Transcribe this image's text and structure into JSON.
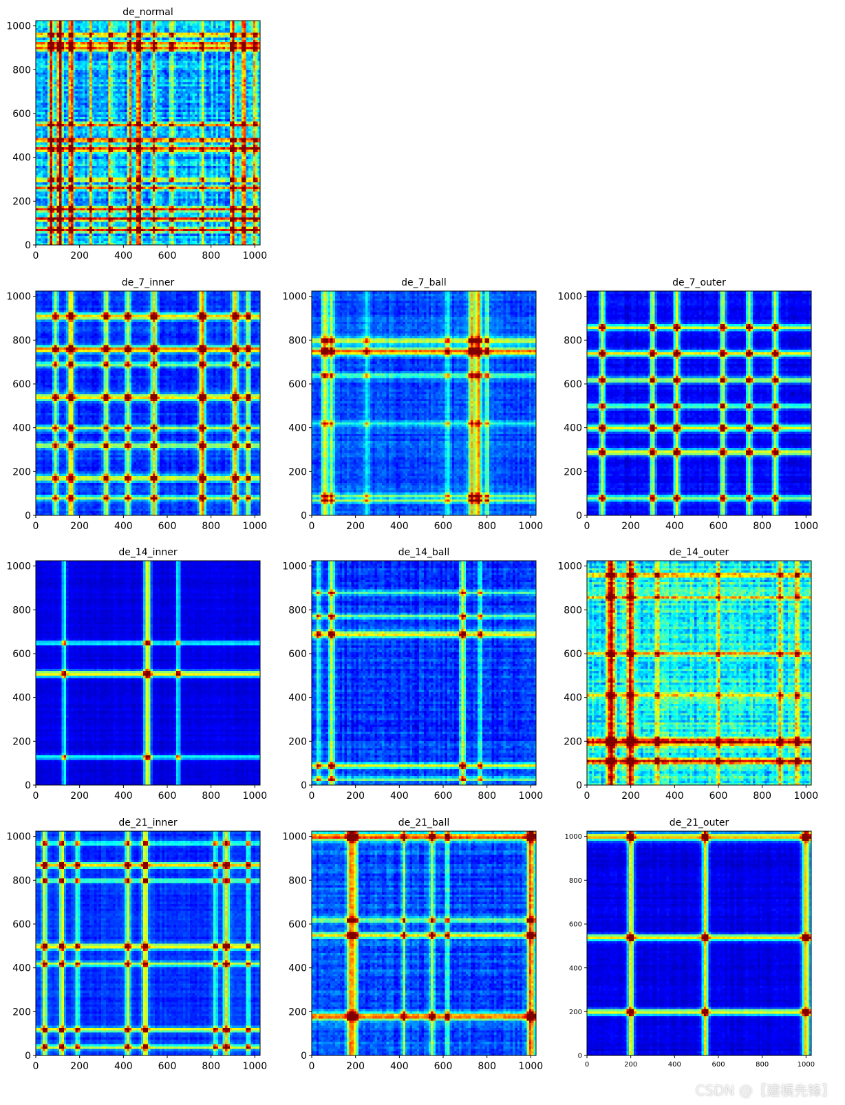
{
  "figure": {
    "colormap": "jet",
    "grid": "4x3",
    "watermark": "CSDN @【建模先锋】"
  },
  "chart_data": [
    {
      "type": "heatmap",
      "title": "de_normal",
      "row": 0,
      "col": 0,
      "xlim": [
        0,
        1024
      ],
      "ylim": [
        0,
        1024
      ],
      "x_ticks": [
        0,
        200,
        400,
        600,
        800,
        1000
      ],
      "y_ticks": [
        0,
        200,
        400,
        600,
        800,
        1000
      ],
      "base": 0.3,
      "noise": 0.16,
      "bands_x": [
        [
          70,
          0.6,
          7
        ],
        [
          110,
          0.7,
          7
        ],
        [
          160,
          0.6,
          7
        ],
        [
          250,
          0.45,
          6
        ],
        [
          340,
          0.4,
          6
        ],
        [
          430,
          0.45,
          6
        ],
        [
          470,
          0.6,
          7
        ],
        [
          540,
          0.45,
          6
        ],
        [
          620,
          0.35,
          6
        ],
        [
          760,
          0.35,
          6
        ],
        [
          900,
          0.6,
          7
        ],
        [
          950,
          0.55,
          7
        ],
        [
          1000,
          0.4,
          6
        ]
      ],
      "bands_y": [
        [
          70,
          0.55,
          7
        ],
        [
          120,
          0.55,
          7
        ],
        [
          165,
          0.6,
          7
        ],
        [
          260,
          0.45,
          6
        ],
        [
          300,
          0.4,
          6
        ],
        [
          440,
          0.6,
          7
        ],
        [
          480,
          0.5,
          7
        ],
        [
          550,
          0.45,
          6
        ],
        [
          900,
          0.5,
          7
        ],
        [
          920,
          0.55,
          7
        ],
        [
          960,
          0.45,
          6
        ]
      ]
    },
    {
      "type": "heatmap",
      "title": "de_7_inner",
      "row": 1,
      "col": 0,
      "xlim": [
        0,
        1024
      ],
      "ylim": [
        0,
        1024
      ],
      "x_ticks": [
        0,
        200,
        400,
        600,
        800,
        1000
      ],
      "y_ticks": [
        0,
        200,
        400,
        600,
        800,
        1000
      ],
      "base": 0.17,
      "noise": 0.07,
      "bands_x": [
        [
          90,
          0.35,
          8
        ],
        [
          160,
          0.5,
          10
        ],
        [
          320,
          0.4,
          9
        ],
        [
          420,
          0.4,
          9
        ],
        [
          540,
          0.5,
          10
        ],
        [
          760,
          0.6,
          10
        ],
        [
          910,
          0.5,
          10
        ],
        [
          970,
          0.35,
          8
        ]
      ],
      "bands_y": [
        [
          80,
          0.35,
          8
        ],
        [
          170,
          0.45,
          10
        ],
        [
          320,
          0.4,
          9
        ],
        [
          400,
          0.35,
          8
        ],
        [
          540,
          0.5,
          10
        ],
        [
          690,
          0.35,
          8
        ],
        [
          760,
          0.6,
          10
        ],
        [
          910,
          0.5,
          10
        ]
      ]
    },
    {
      "type": "heatmap",
      "title": "de_7_ball",
      "row": 1,
      "col": 1,
      "xlim": [
        0,
        1024
      ],
      "ylim": [
        0,
        1024
      ],
      "x_ticks": [
        0,
        200,
        400,
        600,
        800,
        1000
      ],
      "y_ticks": [
        0,
        200,
        400,
        600,
        800,
        1000
      ],
      "base": 0.2,
      "noise": 0.08,
      "bands_x": [
        [
          60,
          0.4,
          10
        ],
        [
          90,
          0.35,
          8
        ],
        [
          250,
          0.2,
          8
        ],
        [
          620,
          0.2,
          8
        ],
        [
          730,
          0.5,
          10
        ],
        [
          760,
          0.55,
          10
        ],
        [
          800,
          0.3,
          8
        ]
      ],
      "bands_y": [
        [
          70,
          0.35,
          8
        ],
        [
          90,
          0.3,
          8
        ],
        [
          420,
          0.2,
          8
        ],
        [
          640,
          0.25,
          8
        ],
        [
          750,
          0.55,
          12
        ],
        [
          800,
          0.4,
          10
        ]
      ]
    },
    {
      "type": "heatmap",
      "title": "de_7_outer",
      "row": 1,
      "col": 2,
      "xlim": [
        0,
        1024
      ],
      "ylim": [
        0,
        1024
      ],
      "x_ticks": [
        0,
        200,
        400,
        600,
        800,
        1000
      ],
      "y_ticks": [
        0,
        200,
        400,
        600,
        800,
        1000
      ],
      "base": 0.12,
      "noise": 0.05,
      "bands_x": [
        [
          70,
          0.45,
          9
        ],
        [
          300,
          0.45,
          9
        ],
        [
          410,
          0.5,
          9
        ],
        [
          620,
          0.45,
          9
        ],
        [
          740,
          0.45,
          9
        ],
        [
          860,
          0.45,
          9
        ]
      ],
      "bands_y": [
        [
          80,
          0.4,
          9
        ],
        [
          290,
          0.5,
          10
        ],
        [
          400,
          0.5,
          10
        ],
        [
          500,
          0.35,
          8
        ],
        [
          620,
          0.45,
          9
        ],
        [
          740,
          0.5,
          10
        ],
        [
          860,
          0.45,
          9
        ]
      ]
    },
    {
      "type": "heatmap",
      "title": "de_14_inner",
      "row": 2,
      "col": 0,
      "xlim": [
        0,
        1024
      ],
      "ylim": [
        0,
        1024
      ],
      "x_ticks": [
        0,
        200,
        400,
        600,
        800,
        1000
      ],
      "y_ticks": [
        0,
        200,
        400,
        600,
        800,
        1000
      ],
      "base": 0.1,
      "noise": 0.03,
      "bands_x": [
        [
          130,
          0.32,
          7
        ],
        [
          510,
          0.55,
          10
        ],
        [
          650,
          0.3,
          7
        ]
      ],
      "bands_y": [
        [
          130,
          0.32,
          7
        ],
        [
          510,
          0.55,
          10
        ],
        [
          650,
          0.3,
          7
        ]
      ]
    },
    {
      "type": "heatmap",
      "title": "de_14_ball",
      "row": 2,
      "col": 1,
      "xlim": [
        0,
        1024
      ],
      "ylim": [
        0,
        1024
      ],
      "x_ticks": [
        0,
        200,
        400,
        600,
        800,
        1000
      ],
      "y_ticks": [
        0,
        200,
        400,
        600,
        800,
        1000
      ],
      "base": 0.17,
      "noise": 0.09,
      "bands_x": [
        [
          30,
          0.3,
          7
        ],
        [
          90,
          0.45,
          9
        ],
        [
          690,
          0.45,
          9
        ],
        [
          770,
          0.25,
          7
        ]
      ],
      "bands_y": [
        [
          30,
          0.3,
          7
        ],
        [
          90,
          0.4,
          9
        ],
        [
          690,
          0.5,
          10
        ],
        [
          770,
          0.3,
          8
        ],
        [
          880,
          0.25,
          7
        ]
      ]
    },
    {
      "type": "heatmap",
      "title": "de_14_outer",
      "row": 2,
      "col": 2,
      "xlim": [
        0,
        1024
      ],
      "ylim": [
        0,
        1024
      ],
      "x_ticks": [
        0,
        200,
        400,
        600,
        800,
        1000
      ],
      "y_ticks": [
        0,
        200,
        400,
        600,
        800,
        1000
      ],
      "base": 0.38,
      "noise": 0.16,
      "bands_x": [
        [
          110,
          0.55,
          12
        ],
        [
          200,
          0.55,
          12
        ],
        [
          320,
          0.3,
          7
        ],
        [
          600,
          0.3,
          7
        ],
        [
          880,
          0.3,
          7
        ],
        [
          960,
          0.3,
          7
        ]
      ],
      "bands_y": [
        [
          110,
          0.5,
          10
        ],
        [
          200,
          0.55,
          12
        ],
        [
          410,
          0.3,
          7
        ],
        [
          600,
          0.3,
          7
        ],
        [
          860,
          0.3,
          7
        ],
        [
          960,
          0.3,
          7
        ]
      ]
    },
    {
      "type": "heatmap",
      "title": "de_21_inner",
      "row": 3,
      "col": 0,
      "xlim": [
        0,
        1024
      ],
      "ylim": [
        0,
        1024
      ],
      "x_ticks": [
        0,
        200,
        400,
        600,
        800,
        1000
      ],
      "y_ticks": [
        0,
        200,
        400,
        600,
        800,
        1000
      ],
      "base": 0.17,
      "noise": 0.05,
      "bands_x": [
        [
          40,
          0.45,
          8
        ],
        [
          120,
          0.45,
          8
        ],
        [
          190,
          0.3,
          7
        ],
        [
          420,
          0.45,
          8
        ],
        [
          500,
          0.5,
          9
        ],
        [
          820,
          0.3,
          7
        ],
        [
          870,
          0.5,
          9
        ],
        [
          970,
          0.3,
          7
        ]
      ],
      "bands_y": [
        [
          40,
          0.4,
          8
        ],
        [
          120,
          0.45,
          8
        ],
        [
          420,
          0.4,
          8
        ],
        [
          500,
          0.5,
          9
        ],
        [
          800,
          0.35,
          7
        ],
        [
          870,
          0.5,
          9
        ],
        [
          970,
          0.3,
          7
        ]
      ]
    },
    {
      "type": "heatmap",
      "title": "de_21_ball",
      "row": 3,
      "col": 1,
      "xlim": [
        0,
        1024
      ],
      "ylim": [
        0,
        1024
      ],
      "x_ticks": [
        0,
        200,
        400,
        600,
        800,
        1000
      ],
      "y_ticks": [
        0,
        200,
        400,
        600,
        800,
        1000
      ],
      "base": 0.2,
      "noise": 0.09,
      "bands_x": [
        [
          180,
          0.6,
          12
        ],
        [
          200,
          0.4,
          8
        ],
        [
          420,
          0.3,
          7
        ],
        [
          550,
          0.4,
          8
        ],
        [
          620,
          0.3,
          7
        ],
        [
          1000,
          0.6,
          12
        ]
      ],
      "bands_y": [
        [
          180,
          0.6,
          12
        ],
        [
          550,
          0.45,
          9
        ],
        [
          620,
          0.35,
          8
        ],
        [
          1000,
          0.6,
          12
        ]
      ]
    },
    {
      "type": "heatmap",
      "title": "de_21_outer",
      "row": 3,
      "col": 2,
      "xlim": [
        0,
        1024
      ],
      "ylim": [
        0,
        1024
      ],
      "x_ticks": [
        0,
        200,
        400,
        600,
        800,
        1000
      ],
      "y_ticks": [
        0,
        200,
        400,
        600,
        800,
        1000
      ],
      "tick_font": "small",
      "base": 0.1,
      "noise": 0.04,
      "bands_x": [
        [
          200,
          0.55,
          10
        ],
        [
          540,
          0.55,
          10
        ],
        [
          1000,
          0.6,
          12
        ]
      ],
      "bands_y": [
        [
          200,
          0.5,
          10
        ],
        [
          540,
          0.55,
          10
        ],
        [
          1000,
          0.6,
          12
        ]
      ]
    }
  ]
}
